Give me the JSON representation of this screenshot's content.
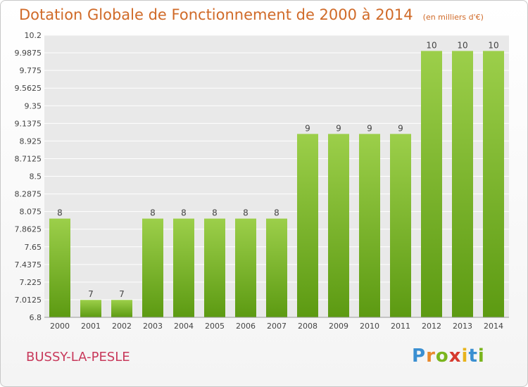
{
  "title": "Dotation Globale de Fonctionnement de 2000 à 2014",
  "subtitle": "(en milliers d'€)",
  "commune": "BUSSY-LA-PESLE",
  "logo": {
    "text": "Proxiti"
  },
  "colors": {
    "bar_top": "#9ccf4a",
    "bar_bottom": "#5c9a12",
    "title": "#d06a28",
    "commune": "#c8395b",
    "grid": "#ffffff",
    "plot_bg": "#e9e9e9"
  },
  "chart_data": {
    "type": "bar",
    "title": "Dotation Globale de Fonctionnement de 2000 à 2014",
    "subtitle": "(en milliers d'€)",
    "categories": [
      "2000",
      "2001",
      "2002",
      "2003",
      "2004",
      "2005",
      "2006",
      "2007",
      "2008",
      "2009",
      "2010",
      "2011",
      "2012",
      "2013",
      "2014"
    ],
    "values": [
      8,
      7,
      7,
      8,
      8,
      8,
      8,
      8,
      9,
      9,
      9,
      9,
      10,
      10,
      10
    ],
    "value_labels": [
      "8",
      "7",
      "7",
      "8",
      "8",
      "8",
      "8",
      "8",
      "9",
      "9",
      "9",
      "9",
      "10",
      "10",
      "10"
    ],
    "bar_values": [
      7.99,
      7.01,
      7.01,
      7.99,
      7.99,
      7.99,
      7.99,
      7.99,
      9.01,
      9.01,
      9.01,
      9.01,
      10.01,
      10.01,
      10.01
    ],
    "ylim": [
      6.8,
      10.2
    ],
    "yticks": [
      "6.8",
      "7.0125",
      "7.225",
      "7.4375",
      "7.65",
      "7.8625",
      "8.075",
      "8.2875",
      "8.5",
      "8.7125",
      "8.925",
      "9.1375",
      "9.35",
      "9.5625",
      "9.775",
      "9.9875",
      "10.2"
    ],
    "grid": true,
    "xlabel": "",
    "ylabel": ""
  }
}
